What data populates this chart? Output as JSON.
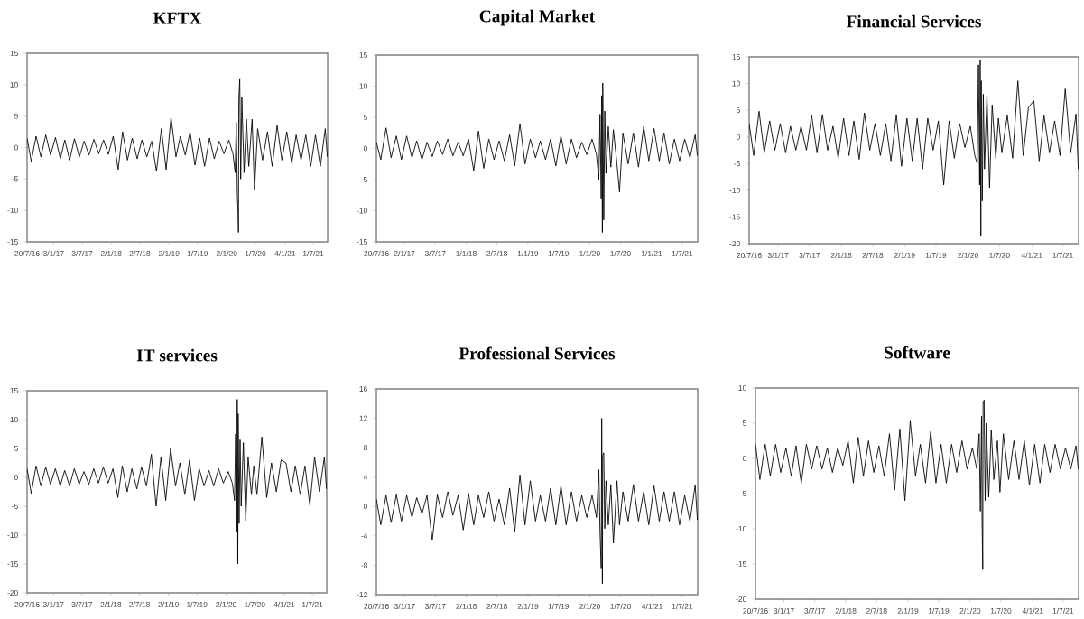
{
  "chart_data": [
    {
      "type": "line",
      "title": "KFTX",
      "xlim": [
        "2016-07-20",
        "2021-09-30"
      ],
      "ylim": [
        -15,
        15
      ],
      "yticks": [
        -15,
        -10,
        -5,
        0,
        5,
        10,
        15
      ],
      "xticks": [
        {
          "value": "2016-07-20",
          "label": "20/7/16"
        },
        {
          "value": "2017-01-03",
          "label": "3/1/17"
        },
        {
          "value": "2017-07-03",
          "label": "3/7/17"
        },
        {
          "value": "2018-01-02",
          "label": "2/1/18"
        },
        {
          "value": "2018-07-02",
          "label": "2/7/18"
        },
        {
          "value": "2019-01-02",
          "label": "2/1/19"
        },
        {
          "value": "2019-07-01",
          "label": "1/7/19"
        },
        {
          "value": "2020-01-02",
          "label": "2/1/20"
        },
        {
          "value": "2020-07-01",
          "label": "1/7/20"
        },
        {
          "value": "2021-01-04",
          "label": "4/1/21"
        },
        {
          "value": "2021-07-01",
          "label": "1/7/21"
        }
      ],
      "x": [
        "2016-07-20",
        "2016-08-15",
        "2016-09-15",
        "2016-10-15",
        "2016-11-15",
        "2016-12-15",
        "2017-01-15",
        "2017-02-15",
        "2017-03-15",
        "2017-04-15",
        "2017-05-15",
        "2017-06-15",
        "2017-07-15",
        "2017-08-15",
        "2017-09-15",
        "2017-10-15",
        "2017-11-15",
        "2017-12-15",
        "2018-01-15",
        "2018-02-15",
        "2018-03-15",
        "2018-04-15",
        "2018-05-15",
        "2018-06-15",
        "2018-07-15",
        "2018-08-15",
        "2018-09-15",
        "2018-10-15",
        "2018-11-15",
        "2018-12-15",
        "2019-01-15",
        "2019-02-15",
        "2019-03-15",
        "2019-04-15",
        "2019-05-15",
        "2019-06-15",
        "2019-07-15",
        "2019-08-15",
        "2019-09-15",
        "2019-10-15",
        "2019-11-15",
        "2019-12-15",
        "2020-01-15",
        "2020-02-10",
        "2020-02-24",
        "2020-03-02",
        "2020-03-09",
        "2020-03-12",
        "2020-03-16",
        "2020-03-18",
        "2020-03-24",
        "2020-03-30",
        "2020-04-06",
        "2020-04-20",
        "2020-05-05",
        "2020-05-20",
        "2020-06-10",
        "2020-06-25",
        "2020-07-15",
        "2020-08-15",
        "2020-09-15",
        "2020-10-15",
        "2020-11-15",
        "2020-12-15",
        "2021-01-15",
        "2021-02-15",
        "2021-03-15",
        "2021-04-15",
        "2021-05-15",
        "2021-06-15",
        "2021-07-15",
        "2021-08-15",
        "2021-09-15",
        "2021-09-28"
      ],
      "series": [
        {
          "color": "#000000",
          "values": [
            1.5,
            -2.2,
            1.8,
            -1.5,
            2.0,
            -1.2,
            1.6,
            -1.8,
            1.2,
            -2.0,
            1.4,
            -1.5,
            1.0,
            -1.2,
            1.3,
            -1.0,
            1.2,
            -1.1,
            1.8,
            -3.5,
            2.5,
            -2.0,
            1.5,
            -1.8,
            1.2,
            -1.5,
            1.0,
            -3.8,
            3.0,
            -3.5,
            4.8,
            -1.5,
            1.8,
            -1.2,
            2.5,
            -2.8,
            1.5,
            -3.0,
            1.5,
            -1.8,
            1.0,
            -1.0,
            1.2,
            -1.0,
            -4.0,
            4.0,
            -8.0,
            -9.5,
            -13.5,
            7.5,
            11.0,
            -5.0,
            8.0,
            -4.0,
            4.5,
            -3.0,
            4.5,
            -6.8,
            3.0,
            -2.0,
            2.5,
            -3.0,
            3.5,
            -2.0,
            2.5,
            -2.5,
            2.0,
            -2.0,
            2.0,
            -3.0,
            2.0,
            -3.0,
            3.0,
            -1.5
          ]
        }
      ]
    },
    {
      "type": "line",
      "title": "Capital Market",
      "xlim": [
        "2016-07-20",
        "2021-09-30"
      ],
      "ylim": [
        -15,
        15
      ],
      "yticks": [
        -15,
        -10,
        -5,
        0,
        5,
        10,
        15
      ],
      "xticks": [
        {
          "value": "2016-07-20",
          "label": "20/7/16"
        },
        {
          "value": "2017-01-02",
          "label": "2/1/17"
        },
        {
          "value": "2017-07-03",
          "label": "3/7/17"
        },
        {
          "value": "2018-01-01",
          "label": "1/1/18"
        },
        {
          "value": "2018-07-02",
          "label": "2/7/18"
        },
        {
          "value": "2019-01-01",
          "label": "1/1/19"
        },
        {
          "value": "2019-07-01",
          "label": "1/7/19"
        },
        {
          "value": "2020-01-01",
          "label": "1/1/20"
        },
        {
          "value": "2020-07-01",
          "label": "1/7/20"
        },
        {
          "value": "2021-01-01",
          "label": "1/1/21"
        },
        {
          "value": "2021-07-01",
          "label": "1/7/21"
        }
      ],
      "x": [
        "2016-07-20",
        "2016-08-15",
        "2016-09-15",
        "2016-10-15",
        "2016-11-15",
        "2016-12-15",
        "2017-01-15",
        "2017-02-15",
        "2017-03-15",
        "2017-04-15",
        "2017-05-15",
        "2017-06-15",
        "2017-07-15",
        "2017-08-15",
        "2017-09-15",
        "2017-10-15",
        "2017-11-15",
        "2017-12-15",
        "2018-01-15",
        "2018-02-15",
        "2018-03-15",
        "2018-04-15",
        "2018-05-15",
        "2018-06-15",
        "2018-07-15",
        "2018-08-15",
        "2018-09-15",
        "2018-10-15",
        "2018-11-15",
        "2018-12-15",
        "2019-01-15",
        "2019-02-15",
        "2019-03-15",
        "2019-04-15",
        "2019-05-15",
        "2019-06-15",
        "2019-07-15",
        "2019-08-15",
        "2019-09-15",
        "2019-10-15",
        "2019-11-15",
        "2019-12-15",
        "2020-01-15",
        "2020-02-10",
        "2020-02-24",
        "2020-03-02",
        "2020-03-09",
        "2020-03-12",
        "2020-03-16",
        "2020-03-18",
        "2020-03-24",
        "2020-03-30",
        "2020-04-06",
        "2020-04-20",
        "2020-05-05",
        "2020-05-20",
        "2020-06-10",
        "2020-06-25",
        "2020-07-15",
        "2020-08-15",
        "2020-09-15",
        "2020-10-15",
        "2020-11-15",
        "2020-12-15",
        "2021-01-15",
        "2021-02-15",
        "2021-03-15",
        "2021-04-15",
        "2021-05-15",
        "2021-06-15",
        "2021-07-15",
        "2021-08-15",
        "2021-09-15",
        "2021-09-28"
      ],
      "series": [
        {
          "color": "#000000",
          "values": [
            1.0,
            -1.8,
            3.3,
            -1.5,
            2.0,
            -1.8,
            2.0,
            -1.5,
            1.2,
            -1.8,
            1.0,
            -1.3,
            1.2,
            -1.0,
            1.5,
            -1.2,
            1.0,
            -1.2,
            1.5,
            -3.6,
            2.8,
            -3.2,
            1.5,
            -1.8,
            1.2,
            -2.0,
            2.2,
            -2.8,
            4.0,
            -2.5,
            1.5,
            -1.5,
            1.2,
            -1.8,
            1.5,
            -2.8,
            2.0,
            -2.5,
            1.5,
            -1.5,
            1.0,
            -1.0,
            1.5,
            -1.0,
            -5.0,
            5.5,
            -8.0,
            8.5,
            -13.5,
            10.5,
            -11.5,
            6.0,
            -4.0,
            3.5,
            -3.0,
            3.0,
            -2.5,
            -7.0,
            2.5,
            -2.5,
            2.5,
            -3.0,
            3.5,
            -2.0,
            3.2,
            -2.0,
            2.5,
            -2.5,
            1.5,
            -2.0,
            1.5,
            -1.5,
            2.2,
            -1.2
          ]
        }
      ]
    },
    {
      "type": "line",
      "title": "Financial Services",
      "xlim": [
        "2016-07-20",
        "2021-09-30"
      ],
      "ylim": [
        -20,
        15
      ],
      "yticks": [
        -20,
        -15,
        -10,
        -5,
        0,
        5,
        10,
        15
      ],
      "xticks": [
        {
          "value": "2016-07-20",
          "label": "20/7/16"
        },
        {
          "value": "2017-01-03",
          "label": "3/1/17"
        },
        {
          "value": "2017-07-03",
          "label": "3/7/17"
        },
        {
          "value": "2018-01-02",
          "label": "2/1/18"
        },
        {
          "value": "2018-07-02",
          "label": "2/7/18"
        },
        {
          "value": "2019-01-02",
          "label": "2/1/19"
        },
        {
          "value": "2019-07-01",
          "label": "1/7/19"
        },
        {
          "value": "2020-01-02",
          "label": "2/1/20"
        },
        {
          "value": "2020-07-01",
          "label": "1/7/20"
        },
        {
          "value": "2021-01-04",
          "label": "4/1/21"
        },
        {
          "value": "2021-07-01",
          "label": "1/7/21"
        }
      ],
      "x": [
        "2016-07-20",
        "2016-08-15",
        "2016-09-15",
        "2016-10-15",
        "2016-11-15",
        "2016-12-15",
        "2017-01-15",
        "2017-02-15",
        "2017-03-15",
        "2017-04-15",
        "2017-05-15",
        "2017-06-15",
        "2017-07-15",
        "2017-08-15",
        "2017-09-15",
        "2017-10-15",
        "2017-11-15",
        "2017-12-15",
        "2018-01-15",
        "2018-02-15",
        "2018-03-15",
        "2018-04-15",
        "2018-05-15",
        "2018-06-15",
        "2018-07-15",
        "2018-08-15",
        "2018-09-15",
        "2018-10-15",
        "2018-11-15",
        "2018-12-15",
        "2019-01-15",
        "2019-02-15",
        "2019-03-15",
        "2019-04-15",
        "2019-05-15",
        "2019-06-15",
        "2019-07-15",
        "2019-08-15",
        "2019-09-15",
        "2019-10-15",
        "2019-11-15",
        "2019-12-15",
        "2020-01-15",
        "2020-02-10",
        "2020-02-24",
        "2020-03-02",
        "2020-03-09",
        "2020-03-12",
        "2020-03-16",
        "2020-03-18",
        "2020-03-24",
        "2020-03-30",
        "2020-04-06",
        "2020-04-20",
        "2020-05-05",
        "2020-05-20",
        "2020-06-10",
        "2020-06-25",
        "2020-07-15",
        "2020-08-15",
        "2020-09-15",
        "2020-10-15",
        "2020-11-15",
        "2020-12-15",
        "2021-01-15",
        "2021-02-15",
        "2021-03-15",
        "2021-04-15",
        "2021-05-15",
        "2021-06-15",
        "2021-07-15",
        "2021-08-15",
        "2021-09-15",
        "2021-09-28"
      ],
      "series": [
        {
          "color": "#000000",
          "values": [
            2.5,
            -3.5,
            4.8,
            -3.0,
            3.0,
            -2.5,
            2.5,
            -3.0,
            2.0,
            -2.5,
            2.0,
            -2.5,
            4.0,
            -3.0,
            4.2,
            -2.5,
            2.0,
            -4.0,
            3.5,
            -3.5,
            3.0,
            -4.2,
            4.5,
            -2.5,
            2.5,
            -3.5,
            2.5,
            -4.5,
            4.2,
            -5.5,
            3.5,
            -4.5,
            3.5,
            -6.0,
            3.5,
            -2.5,
            3.0,
            -9.0,
            3.0,
            -4.0,
            2.5,
            -2.0,
            2.0,
            -3.5,
            -5.0,
            13.5,
            -9.0,
            14.5,
            -18.5,
            10.5,
            -12.0,
            8.0,
            -6.0,
            8.0,
            -9.5,
            6.0,
            -4.0,
            3.5,
            -3.0,
            4.0,
            -4.0,
            10.5,
            -3.5,
            5.5,
            6.8,
            -4.5,
            4.0,
            -3.0,
            3.0,
            -3.5,
            9.0,
            -3.0,
            4.3,
            -6.0
          ]
        }
      ]
    },
    {
      "type": "line",
      "title": "IT services",
      "xlim": [
        "2016-07-20",
        "2021-09-30"
      ],
      "ylim": [
        -20,
        15
      ],
      "yticks": [
        -20,
        -15,
        -10,
        -5,
        0,
        5,
        10,
        15
      ],
      "xticks": [
        {
          "value": "2016-07-20",
          "label": "20/7/16"
        },
        {
          "value": "2017-01-03",
          "label": "3/1/17"
        },
        {
          "value": "2017-07-03",
          "label": "3/7/17"
        },
        {
          "value": "2018-01-02",
          "label": "2/1/18"
        },
        {
          "value": "2018-07-02",
          "label": "2/7/18"
        },
        {
          "value": "2019-01-02",
          "label": "2/1/19"
        },
        {
          "value": "2019-07-01",
          "label": "1/7/19"
        },
        {
          "value": "2020-01-02",
          "label": "2/1/20"
        },
        {
          "value": "2020-07-01",
          "label": "1/7/20"
        },
        {
          "value": "2021-01-04",
          "label": "4/1/21"
        },
        {
          "value": "2021-07-01",
          "label": "1/7/21"
        }
      ],
      "x": [
        "2016-07-20",
        "2016-08-15",
        "2016-09-15",
        "2016-10-15",
        "2016-11-15",
        "2016-12-15",
        "2017-01-15",
        "2017-02-15",
        "2017-03-15",
        "2017-04-15",
        "2017-05-15",
        "2017-06-15",
        "2017-07-15",
        "2017-08-15",
        "2017-09-15",
        "2017-10-15",
        "2017-11-15",
        "2017-12-15",
        "2018-01-15",
        "2018-02-15",
        "2018-03-15",
        "2018-04-15",
        "2018-05-15",
        "2018-06-15",
        "2018-07-15",
        "2018-08-15",
        "2018-09-15",
        "2018-10-15",
        "2018-11-15",
        "2018-12-15",
        "2019-01-15",
        "2019-02-15",
        "2019-03-15",
        "2019-04-15",
        "2019-05-15",
        "2019-06-15",
        "2019-07-15",
        "2019-08-15",
        "2019-09-15",
        "2019-10-15",
        "2019-11-15",
        "2019-12-15",
        "2020-01-15",
        "2020-02-10",
        "2020-02-24",
        "2020-03-02",
        "2020-03-09",
        "2020-03-12",
        "2020-03-16",
        "2020-03-18",
        "2020-03-24",
        "2020-03-30",
        "2020-04-06",
        "2020-04-20",
        "2020-05-05",
        "2020-05-20",
        "2020-06-10",
        "2020-06-25",
        "2020-07-15",
        "2020-08-15",
        "2020-09-15",
        "2020-10-15",
        "2020-11-15",
        "2020-12-15",
        "2021-01-15",
        "2021-02-15",
        "2021-03-15",
        "2021-04-15",
        "2021-05-15",
        "2021-06-15",
        "2021-07-15",
        "2021-08-15",
        "2021-09-15",
        "2021-09-28"
      ],
      "series": [
        {
          "color": "#000000",
          "values": [
            1.5,
            -2.8,
            2.0,
            -1.5,
            1.8,
            -1.2,
            1.5,
            -1.5,
            1.2,
            -1.5,
            1.5,
            -1.2,
            1.0,
            -1.2,
            1.5,
            -1.0,
            1.8,
            -1.0,
            1.5,
            -3.5,
            2.0,
            -2.5,
            1.5,
            -2.0,
            1.8,
            -1.5,
            4.0,
            -5.0,
            3.5,
            -4.0,
            5.0,
            -1.5,
            2.5,
            -3.0,
            3.0,
            -4.0,
            1.5,
            -1.5,
            1.2,
            -1.5,
            1.5,
            -1.0,
            1.0,
            -1.0,
            -4.0,
            7.5,
            -9.5,
            13.5,
            -15.0,
            11.0,
            -8.0,
            6.5,
            -5.0,
            6.0,
            -7.5,
            3.5,
            -3.0,
            2.0,
            -3.0,
            7.0,
            -3.5,
            2.5,
            -2.5,
            3.0,
            2.5,
            -2.5,
            2.0,
            -3.0,
            2.0,
            -4.8,
            3.5,
            -2.5,
            3.5,
            -2.0
          ]
        }
      ]
    },
    {
      "type": "line",
      "title": "Professional Services",
      "xlim": [
        "2016-07-20",
        "2021-09-30"
      ],
      "ylim": [
        -12,
        16
      ],
      "yticks": [
        -12,
        -8,
        -4,
        0,
        4,
        8,
        12,
        16
      ],
      "xticks": [
        {
          "value": "2016-07-20",
          "label": "20/7/16"
        },
        {
          "value": "2017-01-03",
          "label": "3/1/17"
        },
        {
          "value": "2017-07-03",
          "label": "3/7/17"
        },
        {
          "value": "2018-01-02",
          "label": "2/1/18"
        },
        {
          "value": "2018-07-02",
          "label": "2/7/18"
        },
        {
          "value": "2019-01-02",
          "label": "2/1/19"
        },
        {
          "value": "2019-07-01",
          "label": "1/7/19"
        },
        {
          "value": "2020-01-02",
          "label": "2/1/20"
        },
        {
          "value": "2020-07-01",
          "label": "1/7/20"
        },
        {
          "value": "2021-01-04",
          "label": "4/1/21"
        },
        {
          "value": "2021-07-01",
          "label": "1/7/21"
        }
      ],
      "x": [
        "2016-07-20",
        "2016-08-15",
        "2016-09-15",
        "2016-10-15",
        "2016-11-15",
        "2016-12-15",
        "2017-01-15",
        "2017-02-15",
        "2017-03-15",
        "2017-04-15",
        "2017-05-15",
        "2017-06-15",
        "2017-07-15",
        "2017-08-15",
        "2017-09-15",
        "2017-10-15",
        "2017-11-15",
        "2017-12-15",
        "2018-01-15",
        "2018-02-15",
        "2018-03-15",
        "2018-04-15",
        "2018-05-15",
        "2018-06-15",
        "2018-07-15",
        "2018-08-15",
        "2018-09-15",
        "2018-10-15",
        "2018-11-15",
        "2018-12-15",
        "2019-01-15",
        "2019-02-15",
        "2019-03-15",
        "2019-04-15",
        "2019-05-15",
        "2019-06-15",
        "2019-07-15",
        "2019-08-15",
        "2019-09-15",
        "2019-10-15",
        "2019-11-15",
        "2019-12-15",
        "2020-01-15",
        "2020-02-10",
        "2020-02-24",
        "2020-03-02",
        "2020-03-09",
        "2020-03-12",
        "2020-03-16",
        "2020-03-18",
        "2020-03-24",
        "2020-03-30",
        "2020-04-06",
        "2020-04-20",
        "2020-05-05",
        "2020-05-20",
        "2020-06-10",
        "2020-06-25",
        "2020-07-15",
        "2020-08-15",
        "2020-09-15",
        "2020-10-15",
        "2020-11-15",
        "2020-12-15",
        "2021-01-15",
        "2021-02-15",
        "2021-03-15",
        "2021-04-15",
        "2021-05-15",
        "2021-06-15",
        "2021-07-15",
        "2021-08-15",
        "2021-09-15",
        "2021-09-28"
      ],
      "series": [
        {
          "color": "#000000",
          "values": [
            1.0,
            -2.5,
            1.5,
            -2.2,
            1.6,
            -2.0,
            1.5,
            -1.5,
            1.2,
            -1.0,
            1.5,
            -4.6,
            1.6,
            -1.5,
            2.0,
            -1.2,
            1.5,
            -3.2,
            1.8,
            -2.5,
            1.5,
            -1.5,
            2.0,
            -2.0,
            1.0,
            -2.5,
            2.5,
            -3.5,
            4.3,
            -2.5,
            3.5,
            -2.0,
            1.5,
            -2.0,
            2.5,
            -2.5,
            2.8,
            -2.5,
            2.0,
            -2.0,
            1.5,
            -1.5,
            1.5,
            -1.5,
            5.0,
            -3.5,
            -8.5,
            12.0,
            -10.5,
            7.0,
            7.3,
            -3.0,
            3.5,
            -2.5,
            3.0,
            -5.0,
            3.5,
            -2.5,
            2.0,
            -2.0,
            3.0,
            -2.0,
            2.0,
            -2.5,
            2.8,
            -2.0,
            2.0,
            -2.0,
            2.0,
            -2.5,
            1.5,
            -2.0,
            2.9,
            -1.8
          ]
        }
      ]
    },
    {
      "type": "line",
      "title": "Software",
      "xlim": [
        "2016-07-20",
        "2021-09-30"
      ],
      "ylim": [
        -20,
        10
      ],
      "yticks": [
        -20,
        -15,
        -10,
        -5,
        0,
        5,
        10
      ],
      "xticks": [
        {
          "value": "2016-07-20",
          "label": "20/7/16"
        },
        {
          "value": "2017-01-03",
          "label": "3/1/17"
        },
        {
          "value": "2017-07-03",
          "label": "3/7/17"
        },
        {
          "value": "2018-01-02",
          "label": "2/1/18"
        },
        {
          "value": "2018-07-02",
          "label": "2/7/18"
        },
        {
          "value": "2019-01-02",
          "label": "2/1/19"
        },
        {
          "value": "2019-07-01",
          "label": "1/7/19"
        },
        {
          "value": "2020-01-02",
          "label": "2/1/20"
        },
        {
          "value": "2020-07-01",
          "label": "1/7/20"
        },
        {
          "value": "2021-01-04",
          "label": "4/1/21"
        },
        {
          "value": "2021-07-01",
          "label": "1/7/21"
        }
      ],
      "x": [
        "2016-07-20",
        "2016-08-15",
        "2016-09-15",
        "2016-10-15",
        "2016-11-15",
        "2016-12-15",
        "2017-01-15",
        "2017-02-15",
        "2017-03-15",
        "2017-04-15",
        "2017-05-15",
        "2017-06-15",
        "2017-07-15",
        "2017-08-15",
        "2017-09-15",
        "2017-10-15",
        "2017-11-15",
        "2017-12-15",
        "2018-01-15",
        "2018-02-15",
        "2018-03-15",
        "2018-04-15",
        "2018-05-15",
        "2018-06-15",
        "2018-07-15",
        "2018-08-15",
        "2018-09-15",
        "2018-10-15",
        "2018-11-15",
        "2018-12-15",
        "2019-01-15",
        "2019-02-15",
        "2019-03-15",
        "2019-04-15",
        "2019-05-15",
        "2019-06-15",
        "2019-07-15",
        "2019-08-15",
        "2019-09-15",
        "2019-10-15",
        "2019-11-15",
        "2019-12-15",
        "2020-01-15",
        "2020-02-10",
        "2020-02-24",
        "2020-03-02",
        "2020-03-09",
        "2020-03-12",
        "2020-03-16",
        "2020-03-18",
        "2020-03-24",
        "2020-03-30",
        "2020-04-06",
        "2020-04-20",
        "2020-05-05",
        "2020-05-20",
        "2020-06-10",
        "2020-06-25",
        "2020-07-15",
        "2020-08-15",
        "2020-09-15",
        "2020-10-15",
        "2020-11-15",
        "2020-12-15",
        "2021-01-15",
        "2021-02-15",
        "2021-03-15",
        "2021-04-15",
        "2021-05-15",
        "2021-06-15",
        "2021-07-15",
        "2021-08-15",
        "2021-09-15",
        "2021-09-28"
      ],
      "series": [
        {
          "color": "#000000",
          "values": [
            2.0,
            -3.0,
            2.0,
            -2.5,
            2.0,
            -2.0,
            1.5,
            -2.5,
            1.8,
            -3.5,
            2.0,
            -1.5,
            1.8,
            -1.5,
            1.5,
            -2.0,
            1.5,
            -1.0,
            2.5,
            -3.5,
            3.0,
            -2.5,
            2.5,
            -2.0,
            1.8,
            -2.5,
            3.5,
            -4.5,
            4.2,
            -6.0,
            5.3,
            -2.5,
            2.0,
            -3.5,
            3.8,
            -3.5,
            2.0,
            -3.5,
            2.0,
            -2.0,
            2.5,
            -1.5,
            1.5,
            -1.5,
            3.5,
            -7.5,
            6.0,
            -9.0,
            -15.8,
            8.0,
            8.3,
            -6.0,
            5.0,
            -5.5,
            4.0,
            -3.0,
            2.5,
            -4.8,
            3.5,
            -3.0,
            2.5,
            -3.0,
            2.5,
            -3.8,
            2.0,
            -3.5,
            2.0,
            -2.0,
            2.0,
            -1.5,
            1.5,
            -1.5,
            1.8,
            -1.5
          ]
        }
      ]
    }
  ]
}
